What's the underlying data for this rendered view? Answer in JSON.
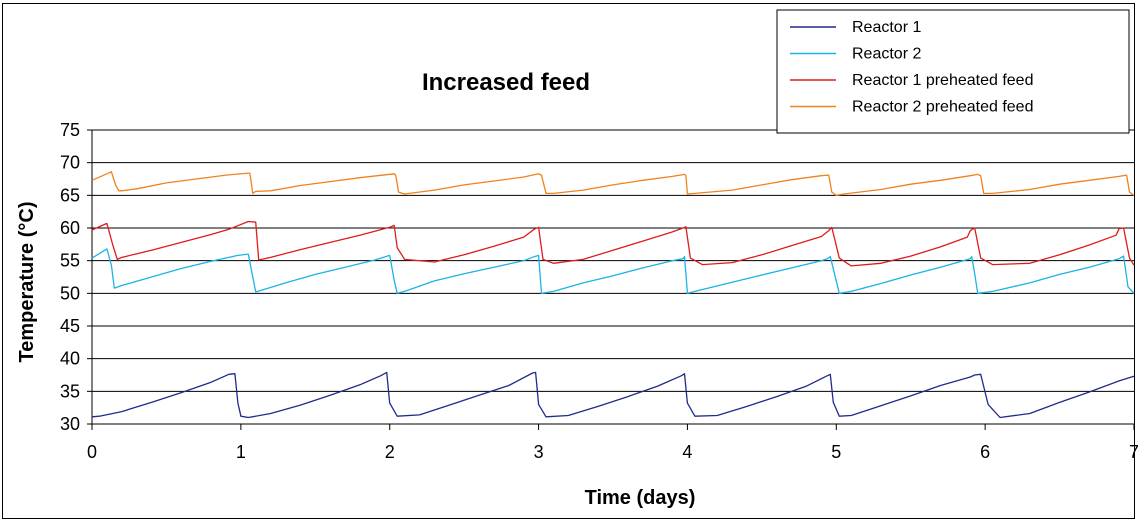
{
  "chart_data": {
    "type": "line",
    "title": "Increased feed",
    "xlabel": "Time (days)",
    "ylabel": "Temperature (°C)",
    "xlim": [
      0,
      7
    ],
    "ylim": [
      30,
      75
    ],
    "xticks": [
      "0",
      "1",
      "2",
      "3",
      "4",
      "5",
      "6",
      "7"
    ],
    "yticks": [
      "30",
      "35",
      "40",
      "45",
      "50",
      "55",
      "60",
      "65",
      "70",
      "75"
    ],
    "grid": "horizontal",
    "legend_position": "top-right",
    "series": [
      {
        "name": "Reactor 1",
        "color": "#1f2a8c",
        "x": [
          0,
          0.05,
          0.2,
          0.4,
          0.6,
          0.8,
          0.92,
          0.96,
          0.98,
          1.0,
          1.05,
          1.2,
          1.4,
          1.6,
          1.8,
          1.94,
          1.98,
          2.0,
          2.05,
          2.2,
          2.4,
          2.6,
          2.8,
          2.96,
          2.98,
          3.0,
          3.05,
          3.2,
          3.4,
          3.6,
          3.8,
          3.96,
          3.98,
          4.0,
          4.05,
          4.2,
          4.4,
          4.6,
          4.8,
          4.94,
          4.96,
          4.98,
          5.02,
          5.1,
          5.3,
          5.5,
          5.7,
          5.9,
          5.93,
          5.97,
          6.02,
          6.1,
          6.3,
          6.5,
          6.7,
          6.9,
          7.0
        ],
        "y": [
          31.1,
          31.2,
          31.9,
          33.3,
          34.8,
          36.4,
          37.6,
          37.7,
          33.2,
          31.2,
          31.0,
          31.6,
          32.9,
          34.4,
          36.0,
          37.4,
          37.9,
          33.2,
          31.2,
          31.4,
          32.9,
          34.4,
          35.9,
          37.8,
          37.9,
          33.0,
          31.1,
          31.3,
          32.7,
          34.2,
          35.8,
          37.4,
          37.7,
          33.2,
          31.2,
          31.3,
          32.7,
          34.2,
          35.8,
          37.4,
          37.6,
          33.3,
          31.2,
          31.3,
          32.8,
          34.3,
          35.9,
          37.2,
          37.5,
          37.6,
          33.0,
          31.0,
          31.6,
          33.3,
          34.9,
          36.6,
          37.3
        ]
      },
      {
        "name": "Reactor 2",
        "color": "#1ab4e6",
        "x": [
          0,
          0.1,
          0.13,
          0.15,
          0.2,
          0.4,
          0.6,
          0.8,
          0.98,
          1.05,
          1.1,
          1.3,
          1.5,
          1.7,
          1.9,
          2.0,
          2.03,
          2.05,
          2.1,
          2.3,
          2.5,
          2.7,
          2.9,
          2.97,
          3.0,
          3.02,
          3.1,
          3.3,
          3.5,
          3.7,
          3.9,
          3.97,
          3.98,
          3.99,
          4.0,
          4.05,
          4.3,
          4.5,
          4.7,
          4.9,
          4.94,
          4.96,
          5.02,
          5.1,
          5.3,
          5.5,
          5.7,
          5.9,
          5.91,
          5.93,
          5.95,
          6.05,
          6.3,
          6.5,
          6.7,
          6.9,
          6.93,
          6.96,
          7.0
        ],
        "y": [
          55.4,
          56.8,
          54.3,
          50.8,
          51.2,
          52.5,
          53.8,
          54.9,
          55.8,
          56.0,
          50.2,
          51.6,
          52.9,
          54.0,
          55.1,
          55.8,
          52.0,
          50.0,
          50.3,
          51.9,
          53.0,
          54.0,
          55.0,
          55.6,
          55.8,
          50.0,
          50.3,
          51.6,
          52.7,
          53.9,
          55.0,
          55.3,
          55.6,
          53.0,
          50.0,
          50.3,
          51.7,
          52.8,
          53.9,
          55.0,
          55.3,
          55.6,
          50.0,
          50.3,
          51.5,
          52.8,
          54.0,
          55.3,
          55.6,
          53.0,
          50.0,
          50.3,
          51.6,
          52.9,
          54.0,
          55.3,
          55.7,
          51.0,
          50.0
        ]
      },
      {
        "name": "Reactor 1 preheated feed",
        "color": "#e01b1b",
        "x": [
          0,
          0.1,
          0.14,
          0.17,
          0.2,
          0.4,
          0.6,
          0.8,
          0.92,
          1.05,
          1.1,
          1.12,
          1.2,
          1.4,
          1.6,
          1.8,
          2.0,
          2.03,
          2.05,
          2.1,
          2.3,
          2.5,
          2.7,
          2.9,
          2.97,
          3.0,
          3.03,
          3.1,
          3.3,
          3.5,
          3.7,
          3.9,
          3.97,
          3.99,
          4.02,
          4.1,
          4.3,
          4.5,
          4.7,
          4.9,
          4.95,
          4.97,
          5.02,
          5.1,
          5.3,
          5.5,
          5.7,
          5.88,
          5.9,
          5.93,
          5.97,
          6.05,
          6.3,
          6.5,
          6.7,
          6.88,
          6.9,
          6.93,
          6.97,
          7.0
        ],
        "y": [
          59.7,
          60.7,
          57.4,
          55.2,
          55.5,
          56.6,
          57.8,
          59.0,
          59.8,
          61.0,
          60.9,
          55.1,
          55.5,
          56.7,
          57.8,
          58.9,
          60.1,
          60.4,
          57.0,
          55.2,
          54.8,
          55.9,
          57.2,
          58.6,
          59.8,
          60.1,
          55.2,
          54.6,
          55.2,
          56.6,
          58.0,
          59.4,
          60.0,
          60.2,
          55.4,
          54.4,
          54.7,
          55.9,
          57.3,
          58.7,
          59.6,
          60.1,
          55.4,
          54.2,
          54.6,
          55.7,
          57.1,
          58.6,
          59.6,
          60.0,
          55.4,
          54.4,
          54.6,
          55.9,
          57.4,
          58.9,
          59.9,
          60.0,
          55.4,
          54.3
        ]
      },
      {
        "name": "Reactor 2 preheated feed",
        "color": "#f0821e",
        "x": [
          0,
          0.13,
          0.16,
          0.18,
          0.2,
          0.3,
          0.5,
          0.7,
          0.9,
          1.05,
          1.06,
          1.08,
          1.1,
          1.2,
          1.4,
          1.6,
          1.8,
          2.03,
          2.04,
          2.06,
          2.1,
          2.3,
          2.5,
          2.7,
          2.9,
          3.0,
          3.02,
          3.05,
          3.1,
          3.3,
          3.5,
          3.7,
          3.9,
          3.98,
          3.99,
          4.0,
          4.05,
          4.3,
          4.5,
          4.7,
          4.9,
          4.95,
          4.97,
          5.0,
          5.05,
          5.3,
          5.5,
          5.7,
          5.9,
          5.95,
          5.97,
          5.99,
          6.05,
          6.3,
          6.5,
          6.7,
          6.9,
          6.95,
          6.97,
          7.0
        ],
        "y": [
          67.3,
          68.6,
          66.5,
          65.7,
          65.7,
          66.0,
          66.9,
          67.5,
          68.1,
          68.4,
          68.4,
          65.3,
          65.6,
          65.7,
          66.5,
          67.1,
          67.7,
          68.3,
          68.1,
          65.5,
          65.2,
          65.8,
          66.6,
          67.2,
          67.8,
          68.3,
          68.1,
          65.3,
          65.3,
          65.8,
          66.6,
          67.3,
          67.9,
          68.2,
          68.0,
          65.2,
          65.3,
          65.8,
          66.6,
          67.4,
          68.0,
          68.1,
          65.5,
          65.0,
          65.2,
          65.9,
          66.7,
          67.3,
          68.0,
          68.2,
          68.0,
          65.3,
          65.3,
          65.9,
          66.7,
          67.3,
          67.9,
          68.1,
          65.5,
          65.0
        ]
      }
    ]
  }
}
